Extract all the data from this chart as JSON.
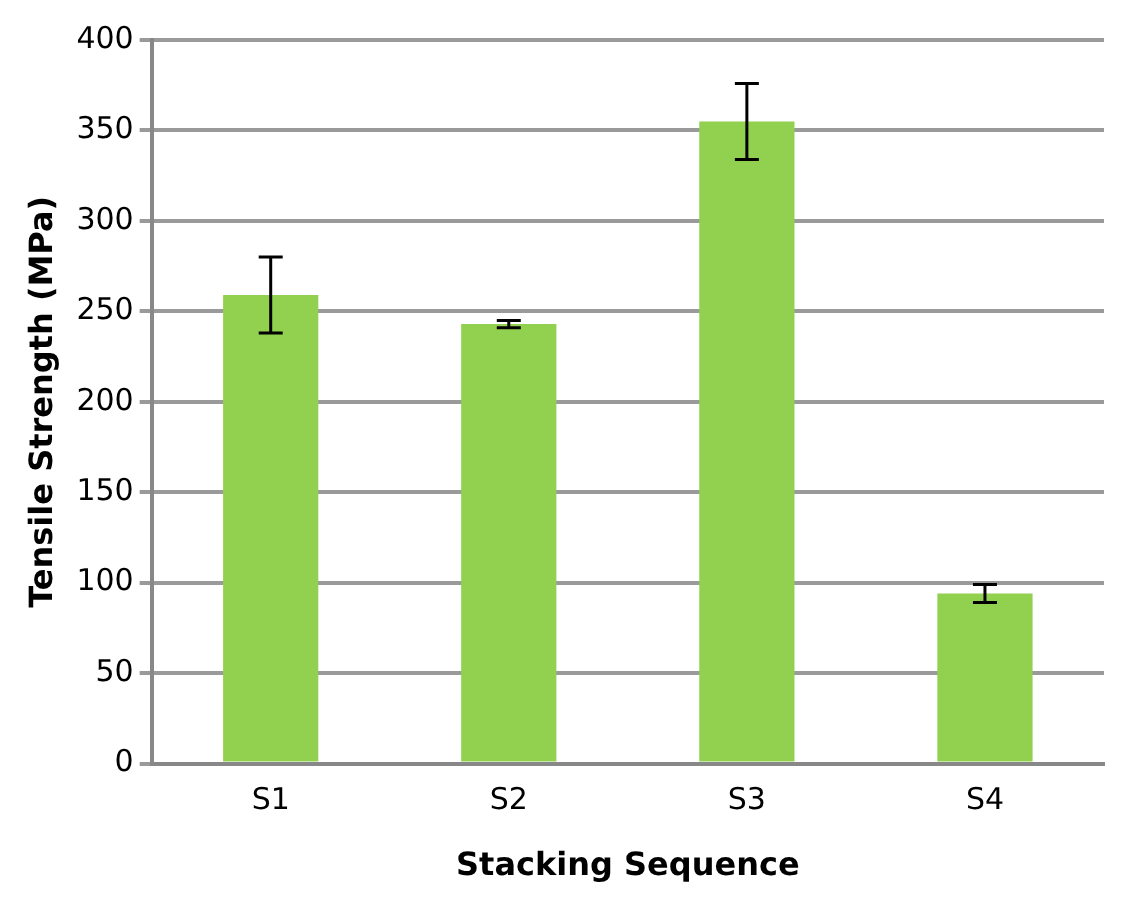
{
  "chart_data": {
    "type": "bar",
    "xlabel": "Stacking Sequence",
    "ylabel": "Tensile Strength (MPa)",
    "categories": [
      "S1",
      "S2",
      "S3",
      "S4"
    ],
    "values": [
      259,
      243,
      355,
      94
    ],
    "errors": [
      21,
      2,
      21,
      5
    ],
    "color": "#92d050",
    "ylim": [
      0,
      400
    ],
    "yticks": [
      0,
      50,
      100,
      150,
      200,
      250,
      300,
      350,
      400
    ],
    "grid": "y",
    "legend": false
  }
}
